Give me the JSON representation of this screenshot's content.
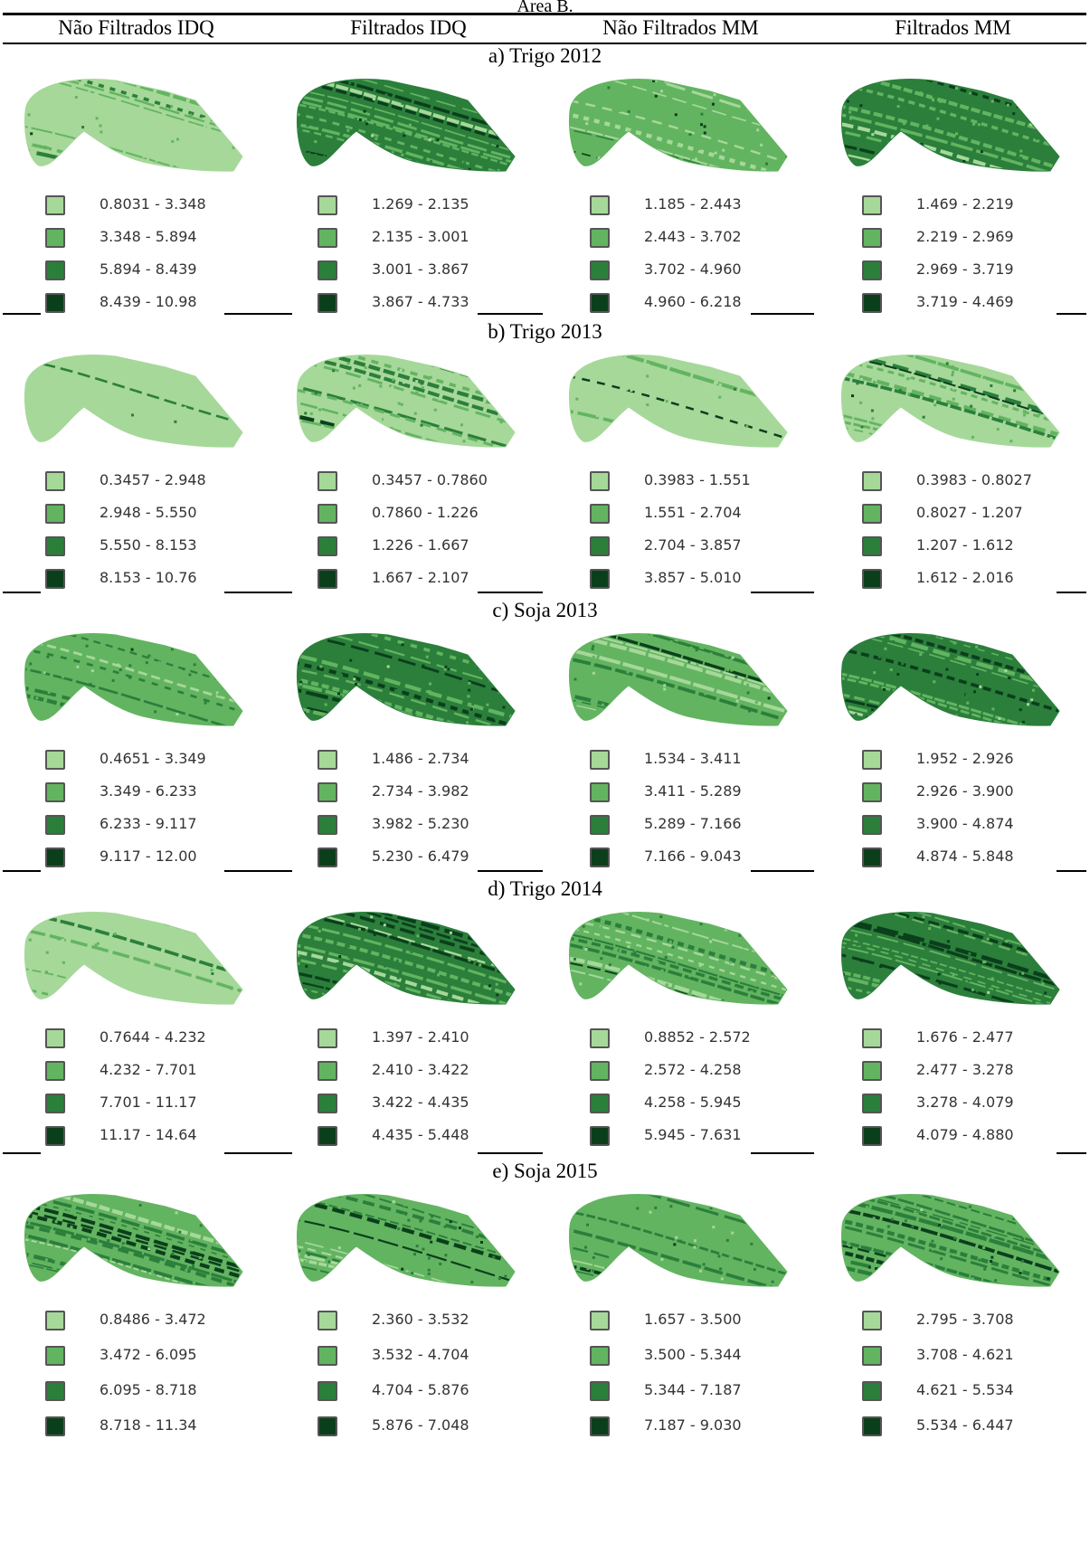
{
  "title": "Área B.",
  "columns": [
    "Não Filtrados IDQ",
    "Filtrados IDQ",
    "Não Filtrados MM",
    "Filtrados MM"
  ],
  "colors": {
    "class1": "#a6d89a",
    "class2": "#63b461",
    "class3": "#2b7f3b",
    "class4": "#0b3f1c"
  },
  "sections": [
    {
      "label": "a) Trigo 2012",
      "panels": [
        {
          "ranges": [
            "0.8031 - 3.348",
            "3.348 - 5.894",
            "5.894 - 8.439",
            "8.439 - 10.98"
          ],
          "dominant": [
            0.72,
            0.22,
            0.05,
            0.01
          ]
        },
        {
          "ranges": [
            "1.269 - 2.135",
            "2.135 - 3.001",
            "3.001 - 3.867",
            "3.867 - 4.733"
          ],
          "dominant": [
            0.1,
            0.3,
            0.45,
            0.15
          ]
        },
        {
          "ranges": [
            "1.185 - 2.443",
            "2.443 - 3.702",
            "3.702 - 4.960",
            "4.960 - 6.218"
          ],
          "dominant": [
            0.25,
            0.5,
            0.2,
            0.05
          ]
        },
        {
          "ranges": [
            "1.469 - 2.219",
            "2.219 - 2.969",
            "2.969 - 3.719",
            "3.719 - 4.469"
          ],
          "dominant": [
            0.1,
            0.3,
            0.45,
            0.15
          ]
        }
      ]
    },
    {
      "label": "b) Trigo 2013",
      "panels": [
        {
          "ranges": [
            "0.3457 - 2.948",
            "2.948 - 5.550",
            "5.550 - 8.153",
            "8.153 - 10.76"
          ],
          "dominant": [
            0.97,
            0.02,
            0.01,
            0.0
          ]
        },
        {
          "ranges": [
            "0.3457 - 0.7860",
            "0.7860 - 1.226",
            "1.226 - 1.667",
            "1.667 - 2.107"
          ],
          "dominant": [
            0.45,
            0.35,
            0.15,
            0.05
          ]
        },
        {
          "ranges": [
            "0.3983 - 1.551",
            "1.551 - 2.704",
            "2.704 - 3.857",
            "3.857 - 5.010"
          ],
          "dominant": [
            0.85,
            0.1,
            0.04,
            0.01
          ]
        },
        {
          "ranges": [
            "0.3983 - 0.8027",
            "0.8027 - 1.207",
            "1.207 - 1.612",
            "1.612 - 2.016"
          ],
          "dominant": [
            0.45,
            0.35,
            0.15,
            0.05
          ]
        }
      ]
    },
    {
      "label": "c) Soja 2013",
      "panels": [
        {
          "ranges": [
            "0.4651 - 3.349",
            "3.349 - 6.233",
            "6.233 - 9.117",
            "9.117 - 12.00"
          ],
          "dominant": [
            0.08,
            0.6,
            0.28,
            0.04
          ]
        },
        {
          "ranges": [
            "1.486 - 2.734",
            "2.734 - 3.982",
            "3.982 - 5.230",
            "5.230 - 6.479"
          ],
          "dominant": [
            0.05,
            0.3,
            0.45,
            0.2
          ]
        },
        {
          "ranges": [
            "1.534 - 3.411",
            "3.411 - 5.289",
            "5.289 - 7.166",
            "7.166 - 9.043"
          ],
          "dominant": [
            0.12,
            0.6,
            0.24,
            0.04
          ]
        },
        {
          "ranges": [
            "1.952 - 2.926",
            "2.926 - 3.900",
            "3.900 - 4.874",
            "4.874 - 5.848"
          ],
          "dominant": [
            0.05,
            0.3,
            0.45,
            0.2
          ]
        }
      ]
    },
    {
      "label": "d) Trigo 2014",
      "panels": [
        {
          "ranges": [
            "0.7644 - 4.232",
            "4.232 - 7.701",
            "7.701 - 11.17",
            "11.17 - 14.64"
          ],
          "dominant": [
            0.7,
            0.25,
            0.04,
            0.01
          ]
        },
        {
          "ranges": [
            "1.397 - 2.410",
            "2.410 - 3.422",
            "3.422 - 4.435",
            "4.435 - 5.448"
          ],
          "dominant": [
            0.06,
            0.32,
            0.45,
            0.17
          ]
        },
        {
          "ranges": [
            "0.8852 - 2.572",
            "2.572 - 4.258",
            "4.258 - 5.945",
            "5.945 - 7.631"
          ],
          "dominant": [
            0.15,
            0.55,
            0.25,
            0.05
          ]
        },
        {
          "ranges": [
            "1.676 - 2.477",
            "2.477 - 3.278",
            "3.278 - 4.079",
            "4.079 - 4.880"
          ],
          "dominant": [
            0.05,
            0.3,
            0.45,
            0.2
          ]
        }
      ]
    },
    {
      "label": "e) Soja 2015",
      "panels": [
        {
          "ranges": [
            "0.8486 - 3.472",
            "3.472 - 6.095",
            "6.095 - 8.718",
            "8.718 - 11.34"
          ],
          "dominant": [
            0.08,
            0.62,
            0.26,
            0.04
          ]
        },
        {
          "ranges": [
            "2.360 - 3.532",
            "3.532 - 4.704",
            "4.704 - 5.876",
            "5.876 - 7.048"
          ],
          "dominant": [
            0.06,
            0.4,
            0.4,
            0.14
          ]
        },
        {
          "ranges": [
            "1.657 - 3.500",
            "3.500 - 5.344",
            "5.344 - 7.187",
            "7.187 - 9.030"
          ],
          "dominant": [
            0.1,
            0.62,
            0.24,
            0.04
          ]
        },
        {
          "ranges": [
            "2.795 - 3.708",
            "3.708 - 4.621",
            "4.621 - 5.534",
            "5.534 - 6.447"
          ],
          "dominant": [
            0.05,
            0.42,
            0.4,
            0.13
          ]
        }
      ]
    }
  ]
}
